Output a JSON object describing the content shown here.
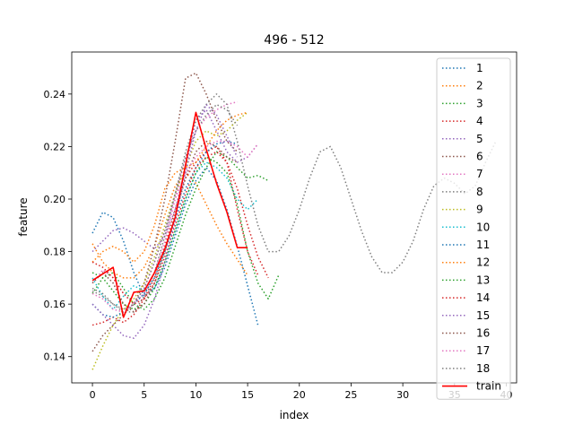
{
  "chart_data": {
    "type": "line",
    "title": "496 - 512",
    "xlabel": "index",
    "ylabel": "feature",
    "xlim": [
      -2,
      41
    ],
    "ylim": [
      0.13,
      0.256
    ],
    "xticks": [
      0,
      5,
      10,
      15,
      20,
      25,
      30,
      35,
      40
    ],
    "yticks": [
      0.14,
      0.16,
      0.18,
      0.2,
      0.22,
      0.24
    ],
    "ytick_labels": [
      "0.14",
      "0.16",
      "0.18",
      "0.20",
      "0.22",
      "0.24"
    ],
    "grid": false,
    "legend_position": "top-right",
    "series": [
      {
        "name": "1",
        "color": "#1f77b4",
        "style": "dotted",
        "x": [
          0,
          1,
          2,
          3,
          4,
          5,
          6,
          7,
          8,
          9,
          10,
          11,
          12,
          13,
          14,
          15,
          16
        ],
        "y": [
          0.187,
          0.195,
          0.193,
          0.184,
          0.172,
          0.163,
          0.166,
          0.174,
          0.186,
          0.198,
          0.207,
          0.212,
          0.207,
          0.196,
          0.182,
          0.167,
          0.152
        ]
      },
      {
        "name": "2",
        "color": "#ff7f0e",
        "style": "dotted",
        "x": [
          0,
          1,
          2,
          3,
          4,
          5,
          6,
          7,
          8,
          9,
          10,
          11,
          12,
          13,
          14,
          15
        ],
        "y": [
          0.183,
          0.176,
          0.172,
          0.17,
          0.17,
          0.174,
          0.182,
          0.194,
          0.205,
          0.21,
          0.206,
          0.198,
          0.19,
          0.183,
          0.177,
          0.171
        ]
      },
      {
        "name": "3",
        "color": "#2ca02c",
        "style": "dotted",
        "x": [
          0,
          1,
          2,
          3,
          4,
          5,
          6,
          7,
          8,
          9,
          10,
          11,
          12,
          13,
          14,
          15,
          16,
          17
        ],
        "y": [
          0.164,
          0.17,
          0.172,
          0.166,
          0.16,
          0.158,
          0.162,
          0.17,
          0.182,
          0.194,
          0.204,
          0.212,
          0.218,
          0.216,
          0.212,
          0.208,
          0.209,
          0.207
        ]
      },
      {
        "name": "4",
        "color": "#d62728",
        "style": "dotted",
        "x": [
          0,
          1,
          2,
          3,
          4,
          5,
          6,
          7,
          8,
          9,
          10,
          11,
          12,
          13,
          14,
          15,
          16
        ],
        "y": [
          0.152,
          0.153,
          0.155,
          0.153,
          0.156,
          0.162,
          0.17,
          0.182,
          0.196,
          0.208,
          0.214,
          0.218,
          0.22,
          0.214,
          0.196,
          0.18,
          0.171
        ]
      },
      {
        "name": "5",
        "color": "#9467bd",
        "style": "dotted",
        "x": [
          0,
          1,
          2,
          3,
          4,
          5,
          6,
          7,
          8,
          9,
          10,
          11,
          12,
          13,
          14,
          15,
          16
        ],
        "y": [
          0.18,
          0.184,
          0.188,
          0.189,
          0.187,
          0.184,
          0.181,
          0.186,
          0.196,
          0.212,
          0.23,
          0.234,
          0.226,
          0.218,
          0.214,
          0.216,
          0.221
        ]
      },
      {
        "name": "6",
        "color": "#8c564b",
        "style": "dotted",
        "x": [
          0,
          1,
          2,
          3,
          4,
          5,
          6,
          7,
          8,
          9,
          10,
          11,
          12,
          13,
          14
        ],
        "y": [
          0.142,
          0.148,
          0.152,
          0.156,
          0.16,
          0.168,
          0.182,
          0.2,
          0.222,
          0.246,
          0.248,
          0.24,
          0.23,
          0.222,
          0.218
        ]
      },
      {
        "name": "7",
        "color": "#e377c2",
        "style": "dotted",
        "x": [
          0,
          1,
          2,
          3,
          4,
          5,
          6,
          7,
          8,
          9,
          10,
          11,
          12,
          13,
          14
        ],
        "y": [
          0.168,
          0.173,
          0.17,
          0.164,
          0.16,
          0.164,
          0.172,
          0.184,
          0.2,
          0.216,
          0.226,
          0.231,
          0.234,
          0.236,
          0.237
        ]
      },
      {
        "name": "8",
        "color": "#7f7f7f",
        "style": "dotted",
        "x": [
          0,
          1,
          2,
          3,
          4,
          5,
          6,
          7,
          8,
          9,
          10,
          11,
          12,
          13,
          14,
          15,
          16,
          17,
          18,
          19,
          20,
          21,
          22,
          23,
          24,
          25,
          26,
          27,
          28,
          29,
          30,
          31,
          32,
          33,
          34,
          35,
          36,
          37,
          38,
          39
        ],
        "y": [
          0.165,
          0.163,
          0.16,
          0.157,
          0.157,
          0.163,
          0.172,
          0.186,
          0.202,
          0.218,
          0.23,
          0.236,
          0.24,
          0.236,
          0.222,
          0.205,
          0.19,
          0.18,
          0.18,
          0.186,
          0.196,
          0.208,
          0.218,
          0.22,
          0.212,
          0.2,
          0.188,
          0.178,
          0.172,
          0.172,
          0.176,
          0.184,
          0.196,
          0.205,
          0.208,
          0.206,
          0.202,
          0.205,
          0.214,
          0.222
        ]
      },
      {
        "name": "9",
        "color": "#bcbd22",
        "style": "dotted",
        "x": [
          0,
          1,
          2,
          3,
          4,
          5,
          6,
          7,
          8,
          9,
          10,
          11,
          12,
          13,
          14,
          15
        ],
        "y": [
          0.135,
          0.144,
          0.152,
          0.158,
          0.162,
          0.168,
          0.178,
          0.19,
          0.202,
          0.212,
          0.222,
          0.226,
          0.224,
          0.226,
          0.23,
          0.233
        ]
      },
      {
        "name": "10",
        "color": "#17becf",
        "style": "dotted",
        "x": [
          0,
          1,
          2,
          3,
          4,
          5,
          6,
          7,
          8,
          9,
          10,
          11,
          12,
          13,
          14,
          15,
          16
        ],
        "y": [
          0.17,
          0.163,
          0.158,
          0.163,
          0.167,
          0.165,
          0.166,
          0.176,
          0.188,
          0.2,
          0.21,
          0.214,
          0.212,
          0.208,
          0.2,
          0.196,
          0.2
        ]
      },
      {
        "name": "11",
        "color": "#1f77b4",
        "style": "dotted",
        "x": [
          0,
          1,
          2,
          3,
          4,
          5,
          6,
          7,
          8,
          9,
          10,
          11,
          12,
          13,
          14
        ],
        "y": [
          0.16,
          0.156,
          0.155,
          0.157,
          0.16,
          0.164,
          0.17,
          0.18,
          0.192,
          0.204,
          0.212,
          0.218,
          0.221,
          0.222,
          0.221
        ]
      },
      {
        "name": "12",
        "color": "#ff7f0e",
        "style": "dotted",
        "x": [
          0,
          1,
          2,
          3,
          4,
          5,
          6,
          7,
          8,
          9,
          10,
          11,
          12,
          13,
          14,
          15
        ],
        "y": [
          0.176,
          0.18,
          0.182,
          0.18,
          0.176,
          0.18,
          0.19,
          0.204,
          0.21,
          0.212,
          0.214,
          0.22,
          0.226,
          0.23,
          0.232,
          0.233
        ]
      },
      {
        "name": "13",
        "color": "#2ca02c",
        "style": "dotted",
        "x": [
          0,
          1,
          2,
          3,
          4,
          5,
          6,
          7,
          8,
          9,
          10,
          11,
          12,
          13,
          14,
          15,
          16,
          17,
          18
        ],
        "y": [
          0.172,
          0.17,
          0.165,
          0.16,
          0.158,
          0.16,
          0.166,
          0.176,
          0.188,
          0.2,
          0.21,
          0.216,
          0.214,
          0.21,
          0.198,
          0.18,
          0.168,
          0.162,
          0.171
        ]
      },
      {
        "name": "14",
        "color": "#d62728",
        "style": "dotted",
        "x": [
          0,
          1,
          2,
          3,
          4,
          5,
          6,
          7,
          8,
          9,
          10,
          11,
          12,
          13,
          14,
          15,
          16,
          17
        ],
        "y": [
          0.176,
          0.174,
          0.17,
          0.164,
          0.16,
          0.162,
          0.168,
          0.178,
          0.19,
          0.202,
          0.212,
          0.216,
          0.218,
          0.214,
          0.204,
          0.19,
          0.178,
          0.17
        ]
      },
      {
        "name": "15",
        "color": "#9467bd",
        "style": "dotted",
        "x": [
          0,
          1,
          2,
          3,
          4,
          5,
          6,
          7,
          8,
          9,
          10,
          11,
          12,
          13,
          14
        ],
        "y": [
          0.16,
          0.156,
          0.152,
          0.148,
          0.147,
          0.152,
          0.162,
          0.176,
          0.192,
          0.21,
          0.226,
          0.236,
          0.232,
          0.224,
          0.216
        ]
      },
      {
        "name": "16",
        "color": "#8c564b",
        "style": "dotted",
        "x": [
          0,
          1,
          2,
          3,
          4,
          5,
          6,
          7,
          8,
          9,
          10,
          11,
          12,
          13,
          14
        ],
        "y": [
          0.168,
          0.172,
          0.168,
          0.16,
          0.157,
          0.16,
          0.168,
          0.18,
          0.194,
          0.208,
          0.218,
          0.222,
          0.22,
          0.216,
          0.214
        ]
      },
      {
        "name": "17",
        "color": "#e377c2",
        "style": "dotted",
        "x": [
          0,
          1,
          2,
          3,
          4,
          5,
          6,
          7,
          8,
          9,
          10,
          11,
          12,
          13,
          14,
          15,
          16
        ],
        "y": [
          0.164,
          0.162,
          0.158,
          0.157,
          0.16,
          0.166,
          0.176,
          0.188,
          0.2,
          0.21,
          0.216,
          0.22,
          0.222,
          0.222,
          0.22,
          0.216,
          0.221
        ]
      },
      {
        "name": "18",
        "color": "#7f7f7f",
        "style": "dotted",
        "x": [
          0,
          1,
          2,
          3,
          4,
          5,
          6,
          7,
          8,
          9,
          10,
          11,
          12,
          13,
          14
        ],
        "y": [
          0.166,
          0.164,
          0.16,
          0.158,
          0.16,
          0.166,
          0.176,
          0.188,
          0.202,
          0.216,
          0.226,
          0.232,
          0.236,
          0.234,
          0.228
        ]
      },
      {
        "name": "train",
        "color": "#ff0000",
        "style": "solid",
        "x": [
          0,
          1,
          2,
          3,
          4,
          5,
          6,
          7,
          8,
          9,
          10,
          11,
          12,
          13,
          14,
          15
        ],
        "y": [
          0.169,
          0.1715,
          0.174,
          0.155,
          0.1645,
          0.165,
          0.172,
          0.181,
          0.193,
          0.213,
          0.233,
          0.219,
          0.206,
          0.195,
          0.1815,
          0.1815
        ]
      }
    ]
  }
}
